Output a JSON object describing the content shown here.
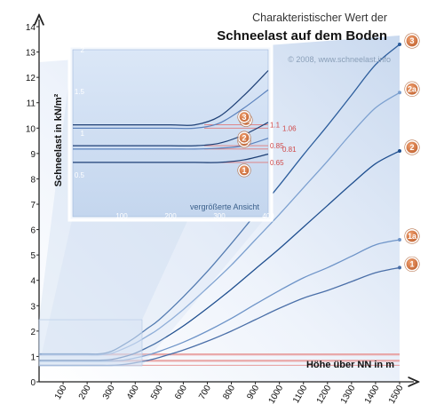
{
  "title": {
    "line1": "Charakteristischer Wert der",
    "line2": "Schneelast auf dem Boden",
    "credit": "© 2008, www.schneelast.info"
  },
  "chart_data": {
    "type": "line",
    "xlabel": "Höhe über NN in m",
    "ylabel": "Schneelast in kN/m²",
    "xlim": [
      0,
      1500
    ],
    "ylim": [
      0,
      14
    ],
    "xticks": [
      100,
      200,
      300,
      400,
      500,
      600,
      700,
      800,
      900,
      1000,
      1100,
      1200,
      1300,
      1400,
      1500
    ],
    "yticks": [
      0,
      1,
      2,
      3,
      4,
      5,
      6,
      7,
      8,
      9,
      10,
      11,
      12,
      13,
      14
    ],
    "x": [
      0,
      100,
      200,
      250,
      300,
      350,
      400,
      450,
      500,
      600,
      700,
      800,
      900,
      1000,
      1100,
      1200,
      1300,
      1400,
      1500
    ],
    "series": [
      {
        "name": "1",
        "badge": "1",
        "values": [
          0.65,
          0.65,
          0.65,
          0.65,
          0.65,
          0.68,
          0.75,
          0.84,
          0.96,
          1.25,
          1.6,
          2.0,
          2.45,
          2.9,
          3.3,
          3.6,
          3.95,
          4.3,
          4.5
        ],
        "color": "#4a6fa8"
      },
      {
        "name": "1a",
        "badge": "1a",
        "values": [
          0.81,
          0.81,
          0.81,
          0.81,
          0.82,
          0.85,
          0.94,
          1.05,
          1.2,
          1.56,
          2.0,
          2.5,
          3.06,
          3.6,
          4.1,
          4.5,
          4.95,
          5.4,
          5.6
        ],
        "color": "#6e94c8"
      },
      {
        "name": "2",
        "badge": "2",
        "values": [
          0.85,
          0.85,
          0.85,
          0.85,
          0.88,
          0.98,
          1.13,
          1.35,
          1.6,
          2.2,
          2.9,
          3.65,
          4.45,
          5.25,
          6.1,
          6.95,
          7.8,
          8.6,
          9.1
        ],
        "color": "#1f4f8f"
      },
      {
        "name": "2a",
        "badge": "2a",
        "values": [
          1.06,
          1.06,
          1.06,
          1.06,
          1.12,
          1.3,
          1.52,
          1.8,
          2.1,
          2.85,
          3.7,
          4.6,
          5.6,
          6.6,
          7.65,
          8.7,
          9.8,
          10.8,
          11.4
        ],
        "color": "#7da1d0"
      },
      {
        "name": "3",
        "badge": "3",
        "values": [
          1.1,
          1.1,
          1.1,
          1.1,
          1.2,
          1.45,
          1.75,
          2.1,
          2.45,
          3.35,
          4.35,
          5.45,
          6.6,
          7.75,
          8.95,
          10.1,
          11.3,
          12.5,
          13.3
        ],
        "color": "#2c5d9c"
      }
    ],
    "reference_lines": [
      {
        "value": 1.1,
        "label": "1.1"
      },
      {
        "value": 1.06,
        "label": "1.06"
      },
      {
        "value": 0.85,
        "label": "0.85"
      },
      {
        "value": 0.81,
        "label": "0.81"
      },
      {
        "value": 0.65,
        "label": "0.65"
      }
    ],
    "inset": {
      "note": "vergrößerte Ansicht",
      "xlim": [
        0,
        400
      ],
      "ylim": [
        0,
        2
      ],
      "xticks": [
        100,
        200,
        300,
        400
      ],
      "yticks": [
        0.5,
        1,
        1.5,
        2
      ],
      "ytick_labels": [
        "0.5",
        "1",
        "1.5",
        "2"
      ]
    },
    "grid": false,
    "legend": "badges at curve ends"
  }
}
